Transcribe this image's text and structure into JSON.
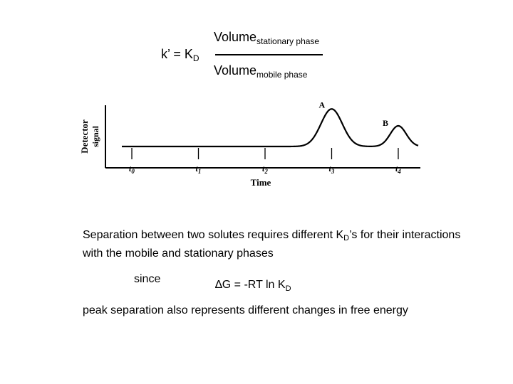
{
  "equation": {
    "lhs_prefix": "k’ = ",
    "lhs_symbol": "K",
    "lhs_sub": "D",
    "numerator_main": "Volume",
    "numerator_sub": "stationary phase",
    "denominator_main": "Volume",
    "denominator_sub": "mobile phase"
  },
  "chart_data": {
    "type": "line",
    "ylabel_line1": "Detector",
    "ylabel_line2": "signal",
    "xlabel": "Time",
    "ticks": [
      {
        "label": "t",
        "sub": "0",
        "x": 0
      },
      {
        "label": "t",
        "sub": "1",
        "x": 1
      },
      {
        "label": "t",
        "sub": "2",
        "x": 2
      },
      {
        "label": "t",
        "sub": "3",
        "x": 3
      },
      {
        "label": "t",
        "sub": "4",
        "x": 4
      }
    ],
    "peaks": [
      {
        "label": "A",
        "center": 3.0,
        "height": 1.0,
        "width": 0.16
      },
      {
        "label": "B",
        "center": 4.0,
        "height": 0.55,
        "width": 0.12
      }
    ],
    "xlim": [
      -0.15,
      4.3
    ],
    "ylim": [
      0,
      1.1
    ]
  },
  "text": {
    "paragraph_part1": "Separation between two solutes requires different K",
    "paragraph_sub": "D",
    "paragraph_part2": "’s for their interactions with the mobile and stationary phases",
    "since": "since",
    "eq2_prefix": "∆G = -RT ln K",
    "eq2_sub": "D",
    "conclusion": "peak separation also represents different changes in free energy"
  }
}
